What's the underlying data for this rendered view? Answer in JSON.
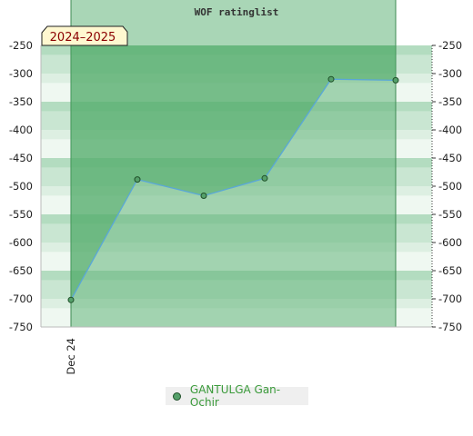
{
  "chart_data": {
    "type": "line",
    "title": "WOF ratinglist",
    "season_label": "2024–2025",
    "x_tick_labels": [
      "Dec 24"
    ],
    "series": [
      {
        "name": "GANTULGA Gan-Ochir",
        "values": [
          -702,
          -488,
          -517,
          -486,
          -310,
          -312
        ],
        "color": "#5aa7d8",
        "marker_color": "#55a06a"
      }
    ],
    "ylim": [
      -750,
      -250
    ],
    "y_ticks": [
      -250,
      -300,
      -350,
      -400,
      -450,
      -500,
      -550,
      -600,
      -650,
      -700,
      -750
    ],
    "legend_position": "bottom-center",
    "grid": false,
    "colors": {
      "band_dark": "#b3dcc0",
      "band_mid": "#c9e6d2",
      "band_light": "#ddefe2",
      "band_lightest": "#eff8f1",
      "season_fill": "#62b47a",
      "season_label_bg": "#fff8d0",
      "line": "#5aa7d8"
    }
  }
}
